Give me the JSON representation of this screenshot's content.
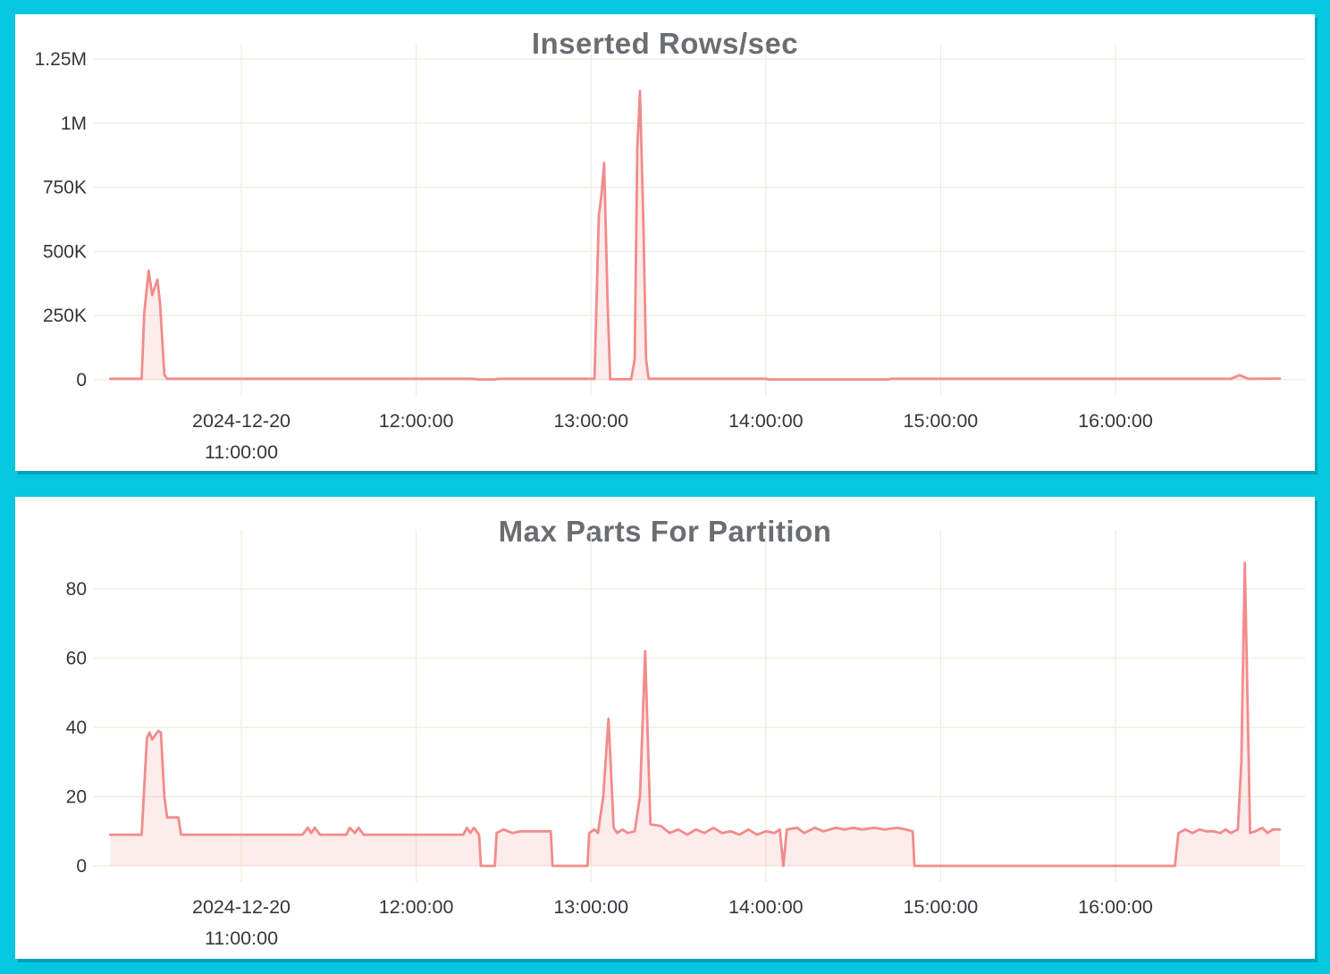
{
  "page": {
    "background_color": "#05c7e0",
    "panel_color": "#ffffff"
  },
  "chart_data": [
    {
      "type": "area",
      "title": "Inserted Rows/sec",
      "x_unit": "time_of_day_hours",
      "xlim": [
        10.25,
        16.94
      ],
      "ylim": [
        0,
        1250000
      ],
      "grid": true,
      "legend": "none",
      "line_color": "#f28b8b",
      "fill_color": "rgba(242,139,139,0.16)",
      "grid_color": "#f0eee2",
      "label_color": "#33373c",
      "y_ticks": [
        {
          "value": 0,
          "label": "0"
        },
        {
          "value": 250000,
          "label": "250K"
        },
        {
          "value": 500000,
          "label": "500K"
        },
        {
          "value": 750000,
          "label": "750K"
        },
        {
          "value": 1000000,
          "label": "1M"
        },
        {
          "value": 1250000,
          "label": "1.25M"
        }
      ],
      "x_ticks": [
        {
          "value": 11,
          "lines": [
            "2024-12-20",
            "11:00:00"
          ]
        },
        {
          "value": 12,
          "lines": [
            "12:00:00"
          ]
        },
        {
          "value": 13,
          "lines": [
            "13:00:00"
          ]
        },
        {
          "value": 14,
          "lines": [
            "14:00:00"
          ]
        },
        {
          "value": 15,
          "lines": [
            "15:00:00"
          ]
        },
        {
          "value": 16,
          "lines": [
            "16:00:00"
          ]
        }
      ],
      "points": [
        [
          10.25,
          4000
        ],
        [
          10.43,
          4000
        ],
        [
          10.445,
          260000
        ],
        [
          10.47,
          425000
        ],
        [
          10.49,
          330000
        ],
        [
          10.52,
          390000
        ],
        [
          10.535,
          300000
        ],
        [
          10.56,
          20000
        ],
        [
          10.575,
          4000
        ],
        [
          12.33,
          4000
        ],
        [
          12.35,
          1500
        ],
        [
          12.45,
          1500
        ],
        [
          12.47,
          4000
        ],
        [
          13.02,
          4000
        ],
        [
          13.045,
          640000
        ],
        [
          13.06,
          720000
        ],
        [
          13.075,
          845000
        ],
        [
          13.095,
          300000
        ],
        [
          13.11,
          2000
        ],
        [
          13.23,
          2000
        ],
        [
          13.25,
          80000
        ],
        [
          13.265,
          900000
        ],
        [
          13.28,
          1125000
        ],
        [
          13.3,
          600000
        ],
        [
          13.315,
          80000
        ],
        [
          13.33,
          4000
        ],
        [
          14.0,
          4000
        ],
        [
          14.02,
          1500
        ],
        [
          14.7,
          1500
        ],
        [
          14.72,
          4000
        ],
        [
          16.66,
          4000
        ],
        [
          16.71,
          18000
        ],
        [
          16.76,
          4000
        ],
        [
          16.94,
          5000
        ]
      ]
    },
    {
      "type": "area",
      "title": "Max Parts For Partition",
      "x_unit": "time_of_day_hours",
      "xlim": [
        10.25,
        16.94
      ],
      "ylim": [
        0,
        90
      ],
      "grid": true,
      "legend": "none",
      "line_color": "#f28b8b",
      "fill_color": "rgba(242,139,139,0.16)",
      "grid_color": "#f0eee2",
      "label_color": "#33373c",
      "y_ticks": [
        {
          "value": 0,
          "label": "0"
        },
        {
          "value": 20,
          "label": "20"
        },
        {
          "value": 40,
          "label": "40"
        },
        {
          "value": 60,
          "label": "60"
        },
        {
          "value": 80,
          "label": "80"
        }
      ],
      "x_ticks": [
        {
          "value": 11,
          "lines": [
            "2024-12-20",
            "11:00:00"
          ]
        },
        {
          "value": 12,
          "lines": [
            "12:00:00"
          ]
        },
        {
          "value": 13,
          "lines": [
            "13:00:00"
          ]
        },
        {
          "value": 14,
          "lines": [
            "14:00:00"
          ]
        },
        {
          "value": 15,
          "lines": [
            "15:00:00"
          ]
        },
        {
          "value": 16,
          "lines": [
            "16:00:00"
          ]
        }
      ],
      "points": [
        [
          10.25,
          9
        ],
        [
          10.43,
          9
        ],
        [
          10.46,
          37
        ],
        [
          10.475,
          38.5
        ],
        [
          10.49,
          36.5
        ],
        [
          10.525,
          39
        ],
        [
          10.54,
          38.5
        ],
        [
          10.56,
          20
        ],
        [
          10.575,
          14
        ],
        [
          10.64,
          14
        ],
        [
          10.655,
          9
        ],
        [
          11.35,
          9
        ],
        [
          11.38,
          11
        ],
        [
          11.4,
          9.5
        ],
        [
          11.42,
          11
        ],
        [
          11.45,
          9
        ],
        [
          11.6,
          9
        ],
        [
          11.62,
          11
        ],
        [
          11.65,
          9.5
        ],
        [
          11.67,
          11
        ],
        [
          11.7,
          9
        ],
        [
          12.27,
          9
        ],
        [
          12.29,
          11
        ],
        [
          12.31,
          9.5
        ],
        [
          12.33,
          11
        ],
        [
          12.36,
          9
        ],
        [
          12.37,
          0
        ],
        [
          12.45,
          0
        ],
        [
          12.46,
          9.5
        ],
        [
          12.5,
          10.5
        ],
        [
          12.55,
          9.5
        ],
        [
          12.6,
          10
        ],
        [
          12.77,
          10
        ],
        [
          12.78,
          0
        ],
        [
          12.98,
          0
        ],
        [
          12.99,
          9.5
        ],
        [
          13.02,
          10.5
        ],
        [
          13.04,
          9.5
        ],
        [
          13.07,
          20
        ],
        [
          13.1,
          42.5
        ],
        [
          13.13,
          11
        ],
        [
          13.15,
          9.5
        ],
        [
          13.18,
          10.5
        ],
        [
          13.21,
          9.5
        ],
        [
          13.25,
          10
        ],
        [
          13.28,
          20
        ],
        [
          13.31,
          62
        ],
        [
          13.34,
          12
        ],
        [
          13.4,
          11.5
        ],
        [
          13.45,
          9.5
        ],
        [
          13.5,
          10.5
        ],
        [
          13.55,
          9
        ],
        [
          13.6,
          10.5
        ],
        [
          13.65,
          9.5
        ],
        [
          13.7,
          11
        ],
        [
          13.75,
          9.5
        ],
        [
          13.8,
          10
        ],
        [
          13.85,
          9
        ],
        [
          13.9,
          10.5
        ],
        [
          13.95,
          9
        ],
        [
          14.0,
          10
        ],
        [
          14.05,
          9.5
        ],
        [
          14.08,
          10.5
        ],
        [
          14.1,
          0
        ],
        [
          14.12,
          10.5
        ],
        [
          14.18,
          11
        ],
        [
          14.22,
          9.5
        ],
        [
          14.28,
          11
        ],
        [
          14.33,
          10
        ],
        [
          14.4,
          11
        ],
        [
          14.45,
          10.5
        ],
        [
          14.5,
          11
        ],
        [
          14.55,
          10.5
        ],
        [
          14.62,
          11
        ],
        [
          14.68,
          10.5
        ],
        [
          14.75,
          11
        ],
        [
          14.8,
          10.5
        ],
        [
          14.84,
          10
        ],
        [
          14.85,
          0
        ],
        [
          16.34,
          0
        ],
        [
          16.36,
          9.5
        ],
        [
          16.4,
          10.5
        ],
        [
          16.44,
          9.5
        ],
        [
          16.48,
          10.5
        ],
        [
          16.52,
          10
        ],
        [
          16.56,
          10
        ],
        [
          16.6,
          9.5
        ],
        [
          16.63,
          10.5
        ],
        [
          16.66,
          9.5
        ],
        [
          16.7,
          10.5
        ],
        [
          16.72,
          30
        ],
        [
          16.74,
          87.5
        ],
        [
          16.77,
          9.5
        ],
        [
          16.8,
          10
        ],
        [
          16.84,
          11
        ],
        [
          16.87,
          9.5
        ],
        [
          16.9,
          10.5
        ],
        [
          16.94,
          10.5
        ]
      ]
    }
  ]
}
